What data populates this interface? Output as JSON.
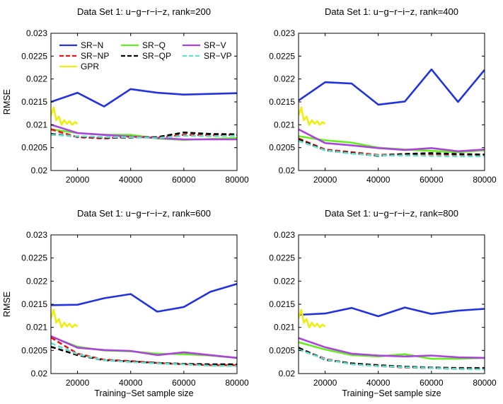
{
  "chart_data": [
    {
      "type": "line",
      "title": "Data Set 1: u−g−r−i−z, rank=200",
      "xlabel": "",
      "ylabel": "RMSE",
      "xlim": [
        10000,
        80000
      ],
      "ylim": [
        0.02,
        0.023
      ],
      "xticks": [
        20000,
        40000,
        60000,
        80000
      ],
      "xtick_labels": [
        "20000",
        "40000",
        "60000",
        "80000"
      ],
      "yticks": [
        0.02,
        0.0205,
        0.021,
        0.0215,
        0.022,
        0.0225,
        0.023
      ],
      "ytick_labels": [
        "0.02",
        "0.0205",
        "0.021",
        "0.0215",
        "0.022",
        "0.0225",
        "0.023"
      ],
      "show_legend": true,
      "series": [
        {
          "name": "SR−N",
          "color": "#2233dd",
          "dash": "solid",
          "x": [
            10000,
            20000,
            30000,
            40000,
            50000,
            60000,
            80000
          ],
          "values": [
            0.0215,
            0.0217,
            0.0214,
            0.02178,
            0.0217,
            0.02166,
            0.02169
          ]
        },
        {
          "name": "SR−Q",
          "color": "#66ee22",
          "dash": "solid",
          "x": [
            10000,
            20000,
            30000,
            40000,
            50000,
            60000,
            70000,
            80000
          ],
          "values": [
            0.0209,
            0.02082,
            0.02078,
            0.02078,
            0.0207,
            0.02067,
            0.02069,
            0.02071
          ]
        },
        {
          "name": "SR−V",
          "color": "#aa44dd",
          "dash": "solid",
          "x": [
            10000,
            20000,
            30000,
            40000,
            50000,
            60000,
            70000,
            80000
          ],
          "values": [
            0.021,
            0.02082,
            0.02078,
            0.02074,
            0.02071,
            0.02068,
            0.02068,
            0.02068
          ]
        },
        {
          "name": "SR−NP",
          "color": "#ee1111",
          "dash": "dashed",
          "x": [
            10000,
            20000,
            30000,
            40000,
            50000,
            60000,
            70000,
            80000
          ],
          "values": [
            0.0209,
            0.02073,
            0.0207,
            0.02074,
            0.02072,
            0.02078,
            0.02077,
            0.02078
          ]
        },
        {
          "name": "SR−QP",
          "color": "#000000",
          "dash": "dashed",
          "x": [
            10000,
            20000,
            30000,
            40000,
            50000,
            60000,
            70000,
            80000
          ],
          "values": [
            0.0208,
            0.02074,
            0.02072,
            0.02072,
            0.02073,
            0.02083,
            0.0208,
            0.02079
          ]
        },
        {
          "name": "SR−VP",
          "color": "#66ddcc",
          "dash": "dashed",
          "x": [
            10000,
            20000,
            30000,
            40000,
            50000,
            60000,
            70000,
            80000
          ],
          "values": [
            0.02078,
            0.02075,
            0.02073,
            0.02073,
            0.02071,
            0.02076,
            0.02075,
            0.02076
          ]
        },
        {
          "name": "GPR",
          "color": "#eeee11",
          "dash": "solid",
          "x": [
            10000,
            11000,
            12000,
            13000,
            14000,
            15000,
            16000,
            17000,
            18000,
            19000,
            20000
          ],
          "values": [
            0.0212,
            0.02138,
            0.0211,
            0.02118,
            0.021,
            0.0211,
            0.02102,
            0.02108,
            0.021,
            0.02106,
            0.02102
          ]
        }
      ]
    },
    {
      "type": "line",
      "title": "Data Set 1: u−g−r−i−z, rank=400",
      "xlabel": "",
      "ylabel": "",
      "xlim": [
        10000,
        80000
      ],
      "ylim": [
        0.02,
        0.023
      ],
      "xticks": [
        20000,
        40000,
        60000,
        80000
      ],
      "xtick_labels": [
        "20000",
        "40000",
        "60000",
        "80000"
      ],
      "yticks": [
        0.02,
        0.0205,
        0.021,
        0.0215,
        0.022,
        0.0225,
        0.023
      ],
      "ytick_labels": [
        "0.02",
        "0.0205",
        "0.021",
        "0.0215",
        "0.022",
        "0.0225",
        "0.023"
      ],
      "show_legend": false,
      "series": [
        {
          "name": "SR−N",
          "color": "#2233dd",
          "dash": "solid",
          "x": [
            10000,
            20000,
            30000,
            40000,
            50000,
            60000,
            70000,
            80000
          ],
          "values": [
            0.02153,
            0.02193,
            0.0219,
            0.02144,
            0.02151,
            0.02221,
            0.0215,
            0.0222
          ]
        },
        {
          "name": "SR−Q",
          "color": "#66ee22",
          "dash": "solid",
          "x": [
            10000,
            20000,
            30000,
            40000,
            50000,
            60000,
            70000,
            80000
          ],
          "values": [
            0.02075,
            0.02066,
            0.02061,
            0.0205,
            0.02046,
            0.02043,
            0.0204,
            0.02044
          ]
        },
        {
          "name": "SR−V",
          "color": "#aa44dd",
          "dash": "solid",
          "x": [
            10000,
            20000,
            30000,
            40000,
            50000,
            60000,
            70000,
            80000
          ],
          "values": [
            0.0209,
            0.0206,
            0.02055,
            0.02049,
            0.02045,
            0.02049,
            0.02042,
            0.02046
          ]
        },
        {
          "name": "SR−NP",
          "color": "#ee1111",
          "dash": "dashed",
          "x": [
            10000,
            20000,
            30000,
            40000,
            50000,
            60000,
            70000,
            80000
          ],
          "values": [
            0.0207,
            0.02046,
            0.0204,
            0.02034,
            0.02036,
            0.02035,
            0.02035,
            0.02034
          ]
        },
        {
          "name": "SR−QP",
          "color": "#000000",
          "dash": "dashed",
          "x": [
            10000,
            20000,
            30000,
            40000,
            50000,
            60000,
            70000,
            80000
          ],
          "values": [
            0.02068,
            0.02044,
            0.02038,
            0.02032,
            0.02036,
            0.02038,
            0.02036,
            0.02035
          ]
        },
        {
          "name": "SR−VP",
          "color": "#66ddcc",
          "dash": "dashed",
          "x": [
            10000,
            20000,
            30000,
            40000,
            50000,
            60000,
            70000,
            80000
          ],
          "values": [
            0.02065,
            0.02044,
            0.02037,
            0.02033,
            0.02033,
            0.02032,
            0.02031,
            0.02031
          ]
        },
        {
          "name": "GPR",
          "color": "#eeee11",
          "dash": "solid",
          "x": [
            10000,
            11000,
            12000,
            13000,
            14000,
            15000,
            16000,
            17000,
            18000,
            19000,
            20000
          ],
          "values": [
            0.0212,
            0.02138,
            0.0211,
            0.02118,
            0.021,
            0.0211,
            0.02102,
            0.02108,
            0.021,
            0.02106,
            0.02102
          ]
        }
      ]
    },
    {
      "type": "line",
      "title": "Data Set 1: u−g−r−i−z, rank=600",
      "xlabel": "Training−Set sample size",
      "ylabel": "RMSE",
      "xlim": [
        10000,
        80000
      ],
      "ylim": [
        0.02,
        0.023
      ],
      "xticks": [
        20000,
        40000,
        60000,
        80000
      ],
      "xtick_labels": [
        "20000",
        "40000",
        "60000",
        "80000"
      ],
      "yticks": [
        0.02,
        0.0205,
        0.021,
        0.0215,
        0.022,
        0.0225,
        0.023
      ],
      "ytick_labels": [
        "0.02",
        "0.0205",
        "0.021",
        "0.0215",
        "0.022",
        "0.0225",
        "0.023"
      ],
      "show_legend": false,
      "series": [
        {
          "name": "SR−N",
          "color": "#2233dd",
          "dash": "solid",
          "x": [
            10000,
            20000,
            30000,
            40000,
            50000,
            60000,
            70000,
            80000
          ],
          "values": [
            0.02148,
            0.02149,
            0.02163,
            0.02172,
            0.02134,
            0.02144,
            0.02177,
            0.02194
          ]
        },
        {
          "name": "SR−Q",
          "color": "#66ee22",
          "dash": "solid",
          "x": [
            10000,
            20000,
            30000,
            40000,
            50000,
            60000,
            70000,
            80000
          ],
          "values": [
            0.0208,
            0.02058,
            0.0205,
            0.02048,
            0.02043,
            0.02042,
            0.02039,
            0.02034
          ]
        },
        {
          "name": "SR−V",
          "color": "#aa44dd",
          "dash": "solid",
          "x": [
            10000,
            20000,
            30000,
            40000,
            50000,
            60000,
            70000,
            80000
          ],
          "values": [
            0.02081,
            0.02056,
            0.02051,
            0.02049,
            0.0204,
            0.02046,
            0.0204,
            0.02034
          ]
        },
        {
          "name": "SR−NP",
          "color": "#ee1111",
          "dash": "dashed",
          "x": [
            10000,
            20000,
            30000,
            40000,
            50000,
            60000,
            70000,
            80000
          ],
          "values": [
            0.02078,
            0.02043,
            0.0203,
            0.02027,
            0.02023,
            0.0202,
            0.02018,
            0.02018
          ]
        },
        {
          "name": "SR−QP",
          "color": "#000000",
          "dash": "dashed",
          "x": [
            10000,
            20000,
            30000,
            40000,
            50000,
            60000,
            70000,
            80000
          ],
          "values": [
            0.02058,
            0.0204,
            0.02029,
            0.02026,
            0.02023,
            0.02021,
            0.0202,
            0.0202
          ]
        },
        {
          "name": "SR−VP",
          "color": "#66ddcc",
          "dash": "dashed",
          "x": [
            10000,
            20000,
            30000,
            40000,
            50000,
            60000,
            70000,
            80000
          ],
          "values": [
            0.02066,
            0.02042,
            0.02029,
            0.02025,
            0.02022,
            0.0202,
            0.02017,
            0.02016
          ]
        },
        {
          "name": "GPR",
          "color": "#eeee11",
          "dash": "solid",
          "x": [
            10000,
            11000,
            12000,
            13000,
            14000,
            15000,
            16000,
            17000,
            18000,
            19000,
            20000
          ],
          "values": [
            0.0212,
            0.02138,
            0.0211,
            0.02118,
            0.021,
            0.0211,
            0.02102,
            0.02108,
            0.021,
            0.02106,
            0.02102
          ]
        }
      ]
    },
    {
      "type": "line",
      "title": "Data Set 1: u−g−r−i−z, rank=800",
      "xlabel": "Training−Set sample size",
      "ylabel": "",
      "xlim": [
        10000,
        80000
      ],
      "ylim": [
        0.02,
        0.023
      ],
      "xticks": [
        20000,
        40000,
        60000,
        80000
      ],
      "xtick_labels": [
        "20000",
        "40000",
        "60000",
        "80000"
      ],
      "yticks": [
        0.02,
        0.0205,
        0.021,
        0.0215,
        0.022,
        0.0225,
        0.023
      ],
      "ytick_labels": [
        "0.02",
        "0.0205",
        "0.021",
        "0.0215",
        "0.022",
        "0.0225",
        "0.023"
      ],
      "show_legend": false,
      "series": [
        {
          "name": "SR−N",
          "color": "#2233dd",
          "dash": "solid",
          "x": [
            10000,
            20000,
            30000,
            40000,
            50000,
            60000,
            70000,
            80000
          ],
          "values": [
            0.02127,
            0.0213,
            0.02142,
            0.02124,
            0.02143,
            0.02129,
            0.02136,
            0.0214
          ]
        },
        {
          "name": "SR−Q",
          "color": "#66ee22",
          "dash": "solid",
          "x": [
            10000,
            20000,
            30000,
            40000,
            50000,
            60000,
            70000,
            80000
          ],
          "values": [
            0.02068,
            0.02052,
            0.0204,
            0.02037,
            0.02042,
            0.02032,
            0.02032,
            0.02034
          ]
        },
        {
          "name": "SR−V",
          "color": "#aa44dd",
          "dash": "solid",
          "x": [
            10000,
            20000,
            30000,
            40000,
            50000,
            60000,
            70000,
            80000
          ],
          "values": [
            0.02077,
            0.02057,
            0.02043,
            0.02039,
            0.02037,
            0.02039,
            0.02035,
            0.02034
          ]
        },
        {
          "name": "SR−NP",
          "color": "#ee1111",
          "dash": "dashed",
          "x": [
            10000,
            20000,
            30000,
            40000,
            50000,
            60000,
            70000,
            80000
          ],
          "values": [
            0.02054,
            0.02032,
            0.02021,
            0.02016,
            0.02013,
            0.02012,
            0.0201,
            0.0201
          ]
        },
        {
          "name": "SR−QP",
          "color": "#000000",
          "dash": "dashed",
          "x": [
            10000,
            20000,
            30000,
            40000,
            50000,
            60000,
            70000,
            80000
          ],
          "values": [
            0.02056,
            0.0203,
            0.02022,
            0.02018,
            0.02015,
            0.02013,
            0.02012,
            0.02012
          ]
        },
        {
          "name": "SR−VP",
          "color": "#66ddcc",
          "dash": "dashed",
          "x": [
            10000,
            20000,
            30000,
            40000,
            50000,
            60000,
            70000,
            80000
          ],
          "values": [
            0.02052,
            0.02031,
            0.0202,
            0.02016,
            0.02014,
            0.02012,
            0.0201,
            0.02009
          ]
        },
        {
          "name": "GPR",
          "color": "#eeee11",
          "dash": "solid",
          "x": [
            10000,
            11000,
            12000,
            13000,
            14000,
            15000,
            16000,
            17000,
            18000,
            19000,
            20000
          ],
          "values": [
            0.0212,
            0.02138,
            0.0211,
            0.02118,
            0.021,
            0.0211,
            0.02102,
            0.02108,
            0.021,
            0.02106,
            0.02102
          ]
        }
      ]
    }
  ]
}
